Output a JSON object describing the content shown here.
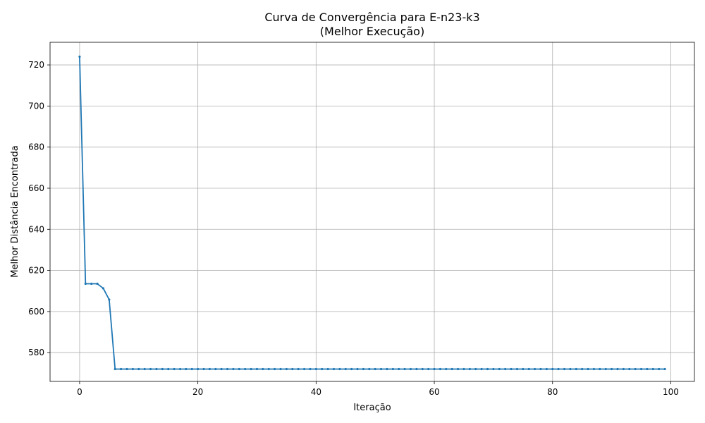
{
  "chart_data": {
    "type": "line",
    "title": "Curva de Convergência para E-n23-k3",
    "subtitle": "(Melhor Execução)",
    "xlabel": "Iteração",
    "ylabel": "Melhor Distância Encontrada",
    "xlim": [
      -5,
      104
    ],
    "ylim": [
      566,
      731
    ],
    "xticks": [
      0,
      20,
      40,
      60,
      80,
      100
    ],
    "yticks": [
      580,
      600,
      620,
      640,
      660,
      680,
      700,
      720
    ],
    "grid": true,
    "line_color": "#1f77b4",
    "series": [
      {
        "x": [
          0,
          1,
          2,
          3,
          4,
          5,
          6,
          7,
          8,
          9,
          10,
          11,
          12,
          13,
          14,
          15,
          16,
          17,
          18,
          19,
          20,
          21,
          22,
          23,
          24,
          25,
          26,
          27,
          28,
          29,
          30,
          31,
          32,
          33,
          34,
          35,
          36,
          37,
          38,
          39,
          40,
          41,
          42,
          43,
          44,
          45,
          46,
          47,
          48,
          49,
          50,
          51,
          52,
          53,
          54,
          55,
          56,
          57,
          58,
          59,
          60,
          61,
          62,
          63,
          64,
          65,
          66,
          67,
          68,
          69,
          70,
          71,
          72,
          73,
          74,
          75,
          76,
          77,
          78,
          79,
          80,
          81,
          82,
          83,
          84,
          85,
          86,
          87,
          88,
          89,
          90,
          91,
          92,
          93,
          94,
          95,
          96,
          97,
          98,
          99
        ],
        "y": [
          724,
          613.5,
          613.5,
          613.5,
          611.3,
          605.8,
          572,
          572,
          572,
          572,
          572,
          572,
          572,
          572,
          572,
          572,
          572,
          572,
          572,
          572,
          572,
          572,
          572,
          572,
          572,
          572,
          572,
          572,
          572,
          572,
          572,
          572,
          572,
          572,
          572,
          572,
          572,
          572,
          572,
          572,
          572,
          572,
          572,
          572,
          572,
          572,
          572,
          572,
          572,
          572,
          572,
          572,
          572,
          572,
          572,
          572,
          572,
          572,
          572,
          572,
          572,
          572,
          572,
          572,
          572,
          572,
          572,
          572,
          572,
          572,
          572,
          572,
          572,
          572,
          572,
          572,
          572,
          572,
          572,
          572,
          572,
          572,
          572,
          572,
          572,
          572,
          572,
          572,
          572,
          572,
          572,
          572,
          572,
          572,
          572,
          572,
          572,
          572,
          572,
          572
        ]
      }
    ]
  }
}
